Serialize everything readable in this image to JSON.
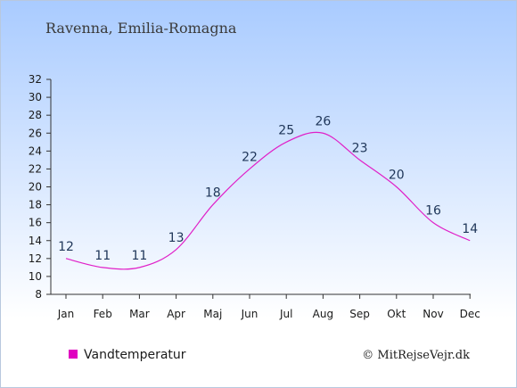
{
  "chart_data": {
    "type": "line",
    "title": "Ravenna, Emilia-Romagna",
    "categories": [
      "Jan",
      "Feb",
      "Mar",
      "Apr",
      "Maj",
      "Jun",
      "Jul",
      "Aug",
      "Sep",
      "Okt",
      "Nov",
      "Dec"
    ],
    "series": [
      {
        "name": "Vandtemperatur",
        "values": [
          12,
          11,
          11,
          13,
          18,
          22,
          25,
          26,
          23,
          20,
          16,
          14
        ]
      }
    ],
    "ylim": [
      8,
      32
    ],
    "yticks": [
      8,
      10,
      12,
      14,
      16,
      18,
      20,
      22,
      24,
      26,
      28,
      30,
      32
    ],
    "grid": false,
    "legend": "bottom-left"
  },
  "colors": {
    "line": "#e020c8",
    "legend_marker": "#e000c0",
    "label": "#1e3558",
    "bg_top": "#a9cbff",
    "bg_bottom": "#ffffff"
  },
  "credit": "© MitRejseVejr.dk"
}
